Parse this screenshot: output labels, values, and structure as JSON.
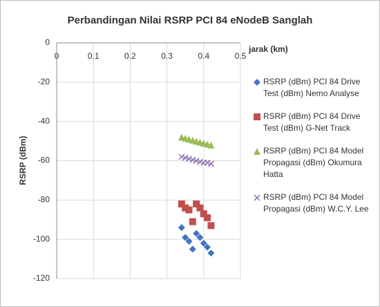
{
  "chart_data": {
    "type": "scatter",
    "title": "Perbandingan Nilai RSRP PCI 84 eNodeB Sanglah",
    "x_label": "jarak (km)",
    "y_label": "RSRP (dBm)",
    "x": [
      0.34,
      0.35,
      0.36,
      0.37,
      0.38,
      0.39,
      0.4,
      0.41,
      0.42
    ],
    "series": [
      {
        "name": "RSRP (dBm) PCI 84 Drive Test (dBm) Nemo Analyse",
        "color": "#4472c4",
        "marker": "diamond",
        "values": [
          -94,
          -99,
          -101,
          -105,
          -97,
          -99,
          -102,
          -104,
          -107
        ]
      },
      {
        "name": "RSRP (dBm) PCI 84 Drive Test (dBm) G-Net Track",
        "color": "#c0504d",
        "marker": "square",
        "values": [
          -82,
          -84,
          -85,
          -91,
          -82,
          -84,
          -87,
          -89,
          -93
        ]
      },
      {
        "name": "RSRP (dBm) PCI 84 Model Propagasi (dBm) Okumura Hatta",
        "color": "#9bbb59",
        "marker": "triangle",
        "values": [
          -48,
          -48.5,
          -49,
          -49.5,
          -50,
          -50.5,
          -51,
          -51.5,
          -52
        ]
      },
      {
        "name": "RSRP (dBm) PCI 84 Model Propagasi (dBm) W.C.Y. Lee",
        "color": "#8064a2",
        "marker": "x",
        "values": [
          -58,
          -58.5,
          -59,
          -59.5,
          -60,
          -60.5,
          -61,
          -61,
          -61.5
        ]
      }
    ],
    "xlim": [
      0,
      0.5
    ],
    "xticks": [
      0,
      0.1,
      0.2,
      0.3,
      0.4,
      0.5
    ],
    "ylim": [
      -120,
      0
    ],
    "yticks": [
      -120,
      -100,
      -80,
      -60,
      -40,
      -20,
      0
    ],
    "grid": true,
    "legend": "right"
  }
}
